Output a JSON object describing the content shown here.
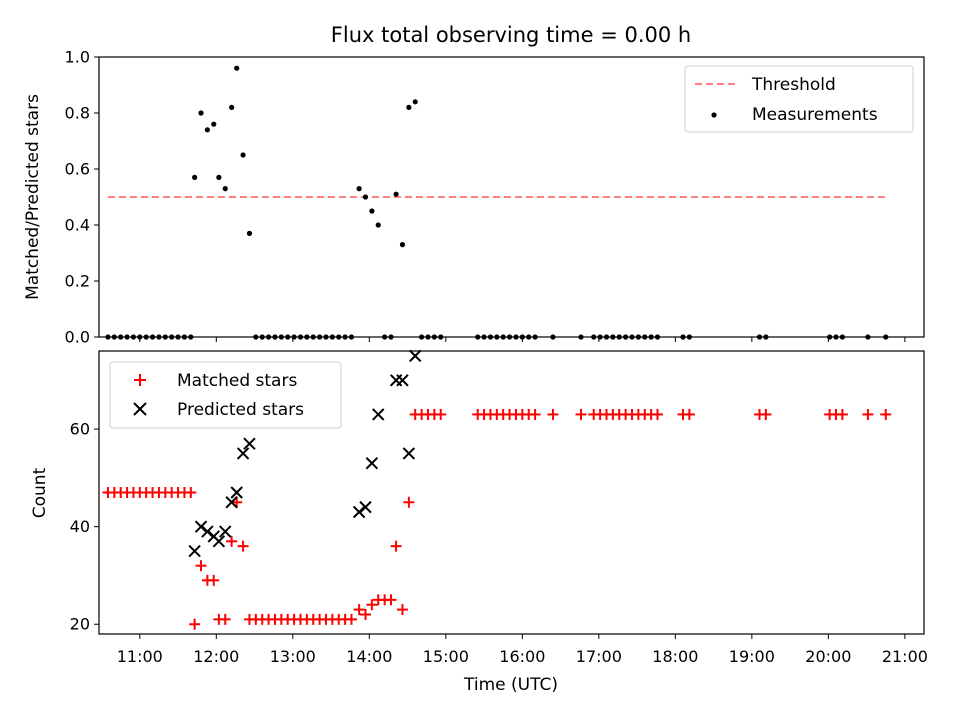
{
  "chart_data": [
    {
      "type": "scatter",
      "title": "Flux total observing time = 0.00 h",
      "xlabel": "",
      "ylabel": "Matched/Predicted stars",
      "xlim": [
        "10:28",
        "21:15"
      ],
      "ylim": [
        0,
        1.0
      ],
      "yticks": [
        "0.0",
        "0.2",
        "0.4",
        "0.6",
        "0.8",
        "1.0"
      ],
      "threshold": {
        "name": "Threshold",
        "y": 0.5,
        "x_start": "10:35",
        "x_end": "20:45",
        "color": "#ff7f7f"
      },
      "legend": {
        "position": "upper right",
        "entries": [
          "Threshold",
          "Measurements"
        ]
      },
      "series": [
        {
          "name": "Measurements",
          "marker": "dot",
          "color": "#000000",
          "points": [
            [
              "10:35",
              0
            ],
            [
              "10:40",
              0
            ],
            [
              "10:45",
              0
            ],
            [
              "10:50",
              0
            ],
            [
              "10:55",
              0
            ],
            [
              "11:00",
              0
            ],
            [
              "11:05",
              0
            ],
            [
              "11:10",
              0
            ],
            [
              "11:15",
              0
            ],
            [
              "11:20",
              0
            ],
            [
              "11:25",
              0
            ],
            [
              "11:30",
              0
            ],
            [
              "11:35",
              0
            ],
            [
              "11:40",
              0
            ],
            [
              "11:43",
              0.57
            ],
            [
              "11:48",
              0.8
            ],
            [
              "11:53",
              0.74
            ],
            [
              "11:58",
              0.76
            ],
            [
              "12:02",
              0.57
            ],
            [
              "12:07",
              0.53
            ],
            [
              "12:12",
              0.82
            ],
            [
              "12:16",
              0.96
            ],
            [
              "12:21",
              0.65
            ],
            [
              "12:26",
              0.37
            ],
            [
              "12:31",
              0
            ],
            [
              "12:36",
              0
            ],
            [
              "12:41",
              0
            ],
            [
              "12:46",
              0
            ],
            [
              "12:51",
              0
            ],
            [
              "12:56",
              0
            ],
            [
              "13:01",
              0
            ],
            [
              "13:06",
              0
            ],
            [
              "13:11",
              0
            ],
            [
              "13:16",
              0
            ],
            [
              "13:21",
              0
            ],
            [
              "13:26",
              0
            ],
            [
              "13:31",
              0
            ],
            [
              "13:36",
              0
            ],
            [
              "13:41",
              0
            ],
            [
              "13:46",
              0
            ],
            [
              "13:52",
              0.53
            ],
            [
              "13:57",
              0.5
            ],
            [
              "14:02",
              0.45
            ],
            [
              "14:07",
              0.4
            ],
            [
              "14:12",
              0
            ],
            [
              "14:17",
              0
            ],
            [
              "14:21",
              0.51
            ],
            [
              "14:26",
              0.33
            ],
            [
              "14:31",
              0.82
            ],
            [
              "14:36",
              0.84
            ],
            [
              "14:41",
              0
            ],
            [
              "14:46",
              0
            ],
            [
              "14:51",
              0
            ],
            [
              "14:56",
              0
            ],
            [
              "15:25",
              0
            ],
            [
              "15:30",
              0
            ],
            [
              "15:35",
              0
            ],
            [
              "15:40",
              0
            ],
            [
              "15:45",
              0
            ],
            [
              "15:50",
              0
            ],
            [
              "15:55",
              0
            ],
            [
              "16:00",
              0
            ],
            [
              "16:05",
              0
            ],
            [
              "16:10",
              0
            ],
            [
              "16:24",
              0
            ],
            [
              "16:46",
              0
            ],
            [
              "16:56",
              0
            ],
            [
              "17:01",
              0
            ],
            [
              "17:06",
              0
            ],
            [
              "17:11",
              0
            ],
            [
              "17:16",
              0
            ],
            [
              "17:21",
              0
            ],
            [
              "17:26",
              0
            ],
            [
              "17:31",
              0
            ],
            [
              "17:36",
              0
            ],
            [
              "17:41",
              0
            ],
            [
              "17:46",
              0
            ],
            [
              "18:06",
              0
            ],
            [
              "18:11",
              0
            ],
            [
              "19:06",
              0
            ],
            [
              "19:11",
              0
            ],
            [
              "20:01",
              0
            ],
            [
              "20:06",
              0
            ],
            [
              "20:11",
              0
            ],
            [
              "20:31",
              0
            ],
            [
              "20:45",
              0
            ]
          ]
        }
      ]
    },
    {
      "type": "scatter",
      "title": "",
      "xlabel": "Time (UTC)",
      "ylabel": "Count",
      "xlim": [
        "10:28",
        "21:15"
      ],
      "ylim": [
        18,
        76
      ],
      "yticks": [
        "20",
        "40",
        "60"
      ],
      "xticks": [
        "11:00",
        "12:00",
        "13:00",
        "14:00",
        "15:00",
        "16:00",
        "17:00",
        "18:00",
        "19:00",
        "20:00",
        "21:00"
      ],
      "legend": {
        "position": "upper left",
        "entries": [
          "Matched stars",
          "Predicted stars"
        ]
      },
      "series": [
        {
          "name": "Matched stars",
          "marker": "plus",
          "color": "#ff0000",
          "points": [
            [
              "10:35",
              47
            ],
            [
              "10:40",
              47
            ],
            [
              "10:45",
              47
            ],
            [
              "10:50",
              47
            ],
            [
              "10:55",
              47
            ],
            [
              "11:00",
              47
            ],
            [
              "11:05",
              47
            ],
            [
              "11:10",
              47
            ],
            [
              "11:15",
              47
            ],
            [
              "11:20",
              47
            ],
            [
              "11:25",
              47
            ],
            [
              "11:30",
              47
            ],
            [
              "11:35",
              47
            ],
            [
              "11:40",
              47
            ],
            [
              "11:43",
              20
            ],
            [
              "11:48",
              32
            ],
            [
              "11:53",
              29
            ],
            [
              "11:58",
              29
            ],
            [
              "12:02",
              21
            ],
            [
              "12:07",
              21
            ],
            [
              "12:12",
              37
            ],
            [
              "12:16",
              45
            ],
            [
              "12:21",
              36
            ],
            [
              "12:26",
              21
            ],
            [
              "12:31",
              21
            ],
            [
              "12:36",
              21
            ],
            [
              "12:41",
              21
            ],
            [
              "12:46",
              21
            ],
            [
              "12:51",
              21
            ],
            [
              "12:56",
              21
            ],
            [
              "13:01",
              21
            ],
            [
              "13:06",
              21
            ],
            [
              "13:11",
              21
            ],
            [
              "13:16",
              21
            ],
            [
              "13:21",
              21
            ],
            [
              "13:26",
              21
            ],
            [
              "13:31",
              21
            ],
            [
              "13:36",
              21
            ],
            [
              "13:41",
              21
            ],
            [
              "13:46",
              21
            ],
            [
              "13:52",
              23
            ],
            [
              "13:57",
              22
            ],
            [
              "14:02",
              24
            ],
            [
              "14:07",
              25
            ],
            [
              "14:12",
              25
            ],
            [
              "14:17",
              25
            ],
            [
              "14:21",
              36
            ],
            [
              "14:26",
              23
            ],
            [
              "14:31",
              45
            ],
            [
              "14:36",
              63
            ],
            [
              "14:41",
              63
            ],
            [
              "14:46",
              63
            ],
            [
              "14:51",
              63
            ],
            [
              "14:56",
              63
            ],
            [
              "15:25",
              63
            ],
            [
              "15:30",
              63
            ],
            [
              "15:35",
              63
            ],
            [
              "15:40",
              63
            ],
            [
              "15:45",
              63
            ],
            [
              "15:50",
              63
            ],
            [
              "15:55",
              63
            ],
            [
              "16:00",
              63
            ],
            [
              "16:05",
              63
            ],
            [
              "16:10",
              63
            ],
            [
              "16:24",
              63
            ],
            [
              "16:46",
              63
            ],
            [
              "16:56",
              63
            ],
            [
              "17:01",
              63
            ],
            [
              "17:06",
              63
            ],
            [
              "17:11",
              63
            ],
            [
              "17:16",
              63
            ],
            [
              "17:21",
              63
            ],
            [
              "17:26",
              63
            ],
            [
              "17:31",
              63
            ],
            [
              "17:36",
              63
            ],
            [
              "17:41",
              63
            ],
            [
              "17:46",
              63
            ],
            [
              "18:06",
              63
            ],
            [
              "18:11",
              63
            ],
            [
              "19:06",
              63
            ],
            [
              "19:11",
              63
            ],
            [
              "20:01",
              63
            ],
            [
              "20:06",
              63
            ],
            [
              "20:11",
              63
            ],
            [
              "20:31",
              63
            ],
            [
              "20:45",
              63
            ]
          ]
        },
        {
          "name": "Predicted stars",
          "marker": "x",
          "color": "#000000",
          "points": [
            [
              "11:43",
              35
            ],
            [
              "11:48",
              40
            ],
            [
              "11:53",
              39
            ],
            [
              "11:58",
              38
            ],
            [
              "12:02",
              37
            ],
            [
              "12:07",
              39
            ],
            [
              "12:12",
              45
            ],
            [
              "12:16",
              47
            ],
            [
              "12:21",
              55
            ],
            [
              "12:26",
              57
            ],
            [
              "13:52",
              43
            ],
            [
              "13:57",
              44
            ],
            [
              "14:02",
              53
            ],
            [
              "14:07",
              63
            ],
            [
              "14:21",
              70
            ],
            [
              "14:26",
              70
            ],
            [
              "14:31",
              55
            ],
            [
              "14:36",
              75
            ]
          ]
        }
      ]
    }
  ]
}
